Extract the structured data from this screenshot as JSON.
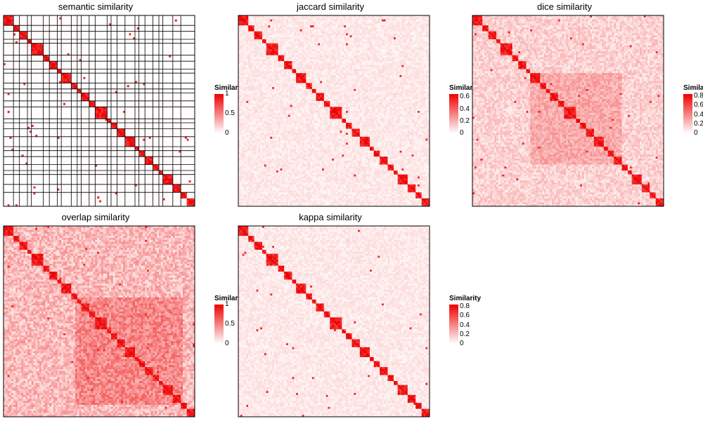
{
  "colors": {
    "low": "#ffffff",
    "high": "#ee0000",
    "border": "#000000"
  },
  "chart_data": [
    {
      "type": "heatmap",
      "title": "semantic similarity",
      "xlabel": "",
      "ylabel": "",
      "legend": {
        "title": "Similarity",
        "ticks": [
          "1",
          "0.5",
          "0"
        ],
        "range": [
          0,
          1
        ]
      },
      "diagonal_value": 1,
      "background_level": 0.02,
      "has_cluster_grid": true,
      "lower_left_block_level": 0.1
    },
    {
      "type": "heatmap",
      "title": "jaccard similarity",
      "xlabel": "",
      "ylabel": "",
      "legend": {
        "title": "Similarity",
        "ticks": [
          "0.6",
          "0.4",
          "0.2",
          "0"
        ],
        "range": [
          0,
          0.65
        ]
      },
      "diagonal_value": 0.65,
      "background_level": 0.1,
      "has_cluster_grid": false
    },
    {
      "type": "heatmap",
      "title": "dice similarity",
      "xlabel": "",
      "ylabel": "",
      "legend": {
        "title": "Similarity",
        "ticks": [
          "0.8",
          "0.6",
          "0.4",
          "0.2",
          "0"
        ],
        "range": [
          0,
          0.85
        ]
      },
      "diagonal_value": 0.85,
      "background_level": 0.2,
      "has_cluster_grid": false
    },
    {
      "type": "heatmap",
      "title": "overlap similarity",
      "xlabel": "",
      "ylabel": "",
      "legend": {
        "title": "Similarity",
        "ticks": [
          "1",
          "0.5",
          "0"
        ],
        "range": [
          0,
          1
        ]
      },
      "diagonal_value": 1,
      "background_level": 0.3,
      "has_cluster_grid": false
    },
    {
      "type": "heatmap",
      "title": "kappa similarity",
      "xlabel": "",
      "ylabel": "",
      "legend": {
        "title": "Similarity",
        "ticks": [
          "0.8",
          "0.6",
          "0.4",
          "0.2",
          "0"
        ],
        "range": [
          0,
          0.85
        ]
      },
      "diagonal_value": 0.85,
      "background_level": 0.1,
      "has_cluster_grid": false
    }
  ]
}
